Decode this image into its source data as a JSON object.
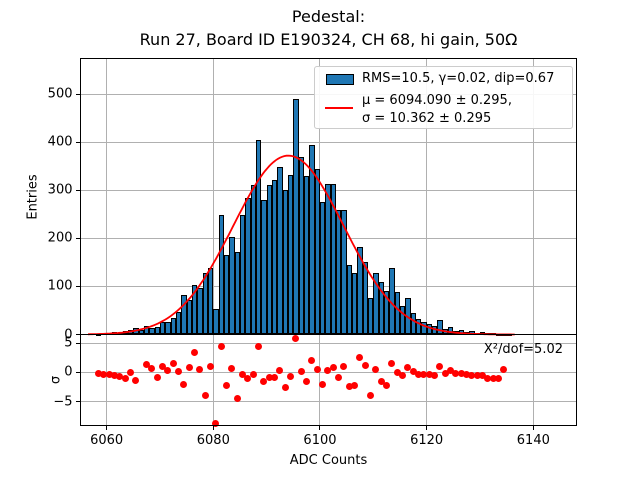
{
  "title": {
    "line1": "Pedestal:",
    "line2": "Run 27, Board ID E190324, CH 68, hi gain, 50Ω"
  },
  "chart_data": {
    "type": "bar",
    "subtype": "histogram-with-gaussian-fit-and-pulls",
    "title": "Pedestal:\nRun 27, Board ID E190324, CH 68, hi gain, 50Ω",
    "main_panel": {
      "ylabel": "Entries",
      "xlim": [
        6055.1,
        6148.0
      ],
      "ylim": [
        0,
        575
      ],
      "xticks": [
        6060,
        6080,
        6100,
        6120,
        6140
      ],
      "yticks": [
        0,
        100,
        200,
        300,
        400,
        500
      ],
      "grid": true,
      "bar_color": "#1f77b4",
      "bar_edge_color": "#000000",
      "histogram": {
        "bin_width": 1,
        "first_bin_left_edge": 6058,
        "counts": [
          2,
          3,
          3,
          5,
          4,
          7,
          10,
          13,
          10,
          18,
          14,
          15,
          25,
          27,
          34,
          47,
          82,
          72,
          103,
          96,
          127,
          138,
          54,
          248,
          165,
          203,
          172,
          248,
          283,
          311,
          404,
          280,
          311,
          321,
          349,
          300,
          332,
          490,
          370,
          330,
          395,
          345,
          276,
          314,
          314,
          259,
          259,
          145,
          127,
          183,
          151,
          75,
          127,
          110,
          90,
          138,
          88,
          60,
          75,
          45,
          32,
          25,
          22,
          18,
          30,
          12,
          15,
          8,
          10,
          6,
          8,
          4,
          5,
          3,
          4,
          2,
          2,
          1
        ]
      },
      "fit": {
        "type": "gaussian",
        "mu": 6094.09,
        "mu_err": 0.295,
        "sigma": 10.362,
        "sigma_err": 0.295,
        "amplitude": 372,
        "color": "#ff0000",
        "draw_range": [
          6056.5,
          6136.5
        ]
      }
    },
    "legend": {
      "position": "upper right",
      "hist_label": "RMS=10.5, γ=0.02, dip=0.67",
      "fit_label_line1": "μ = 6094.090 ± 0.295,",
      "fit_label_line2": "σ = 10.362 ± 0.295"
    },
    "pull_panel": {
      "ylabel": "σ",
      "xlabel": "ADC Counts",
      "ylim": [
        -9.1,
        6.5
      ],
      "yticks": [
        {
          "value": 5,
          "label": "5"
        },
        {
          "value": 0,
          "label": "0"
        },
        {
          "value": -5,
          "label": "−5"
        }
      ],
      "annotation": "X²/dof=5.02",
      "marker_color": "#ff0000",
      "grid": true,
      "points": [
        [
          6058.5,
          -0.2
        ],
        [
          6059.5,
          -0.3
        ],
        [
          6060.5,
          -0.4
        ],
        [
          6061.5,
          -0.6
        ],
        [
          6062.5,
          -0.7
        ],
        [
          6063.5,
          -1.0
        ],
        [
          6064.5,
          0.0
        ],
        [
          6065.5,
          -1.3
        ],
        [
          6067.5,
          1.3
        ],
        [
          6068.5,
          0.6
        ],
        [
          6069.5,
          -0.8
        ],
        [
          6070.5,
          1.0
        ],
        [
          6071.5,
          0.4
        ],
        [
          6072.5,
          1.5
        ],
        [
          6073.5,
          0.1
        ],
        [
          6074.5,
          -2.0
        ],
        [
          6075.5,
          0.8
        ],
        [
          6076.5,
          3.5
        ],
        [
          6077.5,
          0.5
        ],
        [
          6078.5,
          -3.9
        ],
        [
          6079.5,
          1.0
        ],
        [
          6080.5,
          -8.7
        ],
        [
          6081.5,
          4.4
        ],
        [
          6082.5,
          -2.2
        ],
        [
          6083.5,
          0.7
        ],
        [
          6084.5,
          -4.5
        ],
        [
          6085.5,
          -0.4
        ],
        [
          6086.5,
          -1.0
        ],
        [
          6087.5,
          -0.3
        ],
        [
          6088.5,
          4.4
        ],
        [
          6089.5,
          -1.5
        ],
        [
          6090.5,
          -0.9
        ],
        [
          6091.5,
          -0.9
        ],
        [
          6092.5,
          0.3
        ],
        [
          6093.5,
          -2.6
        ],
        [
          6094.5,
          -0.7
        ],
        [
          6095.5,
          5.8
        ],
        [
          6096.5,
          0.2
        ],
        [
          6097.5,
          -1.6
        ],
        [
          6098.5,
          2.0
        ],
        [
          6099.5,
          0.5
        ],
        [
          6100.5,
          -2.0
        ],
        [
          6101.5,
          0.3
        ],
        [
          6102.5,
          0.8
        ],
        [
          6103.5,
          -0.8
        ],
        [
          6104.5,
          1.1
        ],
        [
          6105.5,
          -2.4
        ],
        [
          6106.5,
          -2.3
        ],
        [
          6107.5,
          2.5
        ],
        [
          6108.5,
          1.2
        ],
        [
          6109.5,
          -4.0
        ],
        [
          6110.5,
          0.5
        ],
        [
          6111.5,
          -1.6
        ],
        [
          6112.5,
          -2.2
        ],
        [
          6113.5,
          1.5
        ],
        [
          6114.5,
          0.0
        ],
        [
          6115.5,
          -0.6
        ],
        [
          6116.5,
          0.9
        ],
        [
          6117.5,
          0.1
        ],
        [
          6118.5,
          -0.3
        ],
        [
          6119.5,
          -0.4
        ],
        [
          6120.5,
          -0.3
        ],
        [
          6121.5,
          -0.5
        ],
        [
          6122.5,
          1.1
        ],
        [
          6123.5,
          -0.2
        ],
        [
          6124.5,
          0.3
        ],
        [
          6125.5,
          -0.2
        ],
        [
          6126.5,
          -0.1
        ],
        [
          6127.5,
          -0.4
        ],
        [
          6128.5,
          -0.5
        ],
        [
          6129.5,
          -0.6
        ],
        [
          6130.5,
          -0.5
        ],
        [
          6131.5,
          -1.0
        ],
        [
          6132.5,
          -1.0
        ],
        [
          6133.5,
          -1.0
        ],
        [
          6134.5,
          0.5
        ]
      ]
    },
    "colors": {
      "grid": "#b0b0b0",
      "spine": "#000000",
      "background": "#ffffff",
      "bar": "#1f77b4",
      "fit_line": "#ff0000",
      "pull_marker": "#ff0000"
    }
  }
}
